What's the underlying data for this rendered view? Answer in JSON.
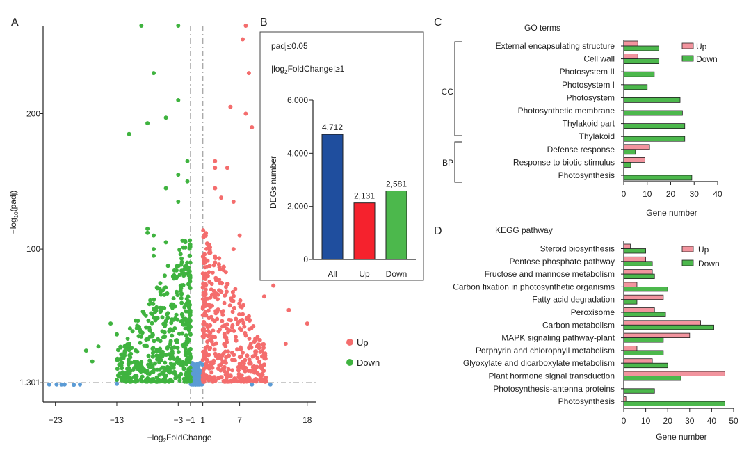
{
  "colors": {
    "up": "#f46d6d",
    "down": "#3fb33f",
    "ns": "#5b9bd5",
    "all": "#1f4e9e",
    "bar_up": "#f5222d",
    "bar_down": "#4cb84c",
    "h_up": "#f2949e",
    "h_down": "#4cb84c"
  },
  "chart_data": [
    {
      "panel": "A",
      "type": "scatter",
      "xlabel": "−log₂FoldChange",
      "ylabel": "−log₁₀(padj)",
      "xlabel_main": "−log",
      "xlabel_sub": "2",
      "xlabel_tail": "FoldChange",
      "ylabel_main": "−log",
      "ylabel_sub": "10",
      "ylabel_tail": "(padj)",
      "xticks": [
        "−23",
        "−13",
        "−3",
        "−1",
        "1",
        "7",
        "18"
      ],
      "xtick_values": [
        -23,
        -13,
        -3,
        -1,
        1,
        7,
        18
      ],
      "yticks": [
        "1.301",
        "100",
        "200"
      ],
      "ytick_values": [
        1.301,
        100,
        200
      ],
      "xlim": [
        -25,
        19.5
      ],
      "ylim": [
        -13,
        265
      ],
      "threshold_y": 1.301,
      "threshold_x": [
        -1,
        1
      ],
      "legend": [
        {
          "label": "Up",
          "series": "up"
        },
        {
          "label": "Down",
          "series": "down"
        }
      ],
      "highlight_points": {
        "down": [
          [
            -9,
            265
          ],
          [
            -3,
            265
          ],
          [
            -7,
            230
          ],
          [
            -3,
            210
          ],
          [
            -5,
            197
          ],
          [
            -8,
            193
          ],
          [
            -11,
            185
          ],
          [
            -1.5,
            165
          ],
          [
            -3,
            155
          ],
          [
            -1.5,
            150
          ],
          [
            -5,
            145
          ],
          [
            -3,
            135
          ],
          [
            -8,
            115
          ],
          [
            -8,
            112
          ],
          [
            -7,
            110
          ],
          [
            -5,
            105
          ],
          [
            -7,
            100
          ],
          [
            -7,
            95
          ],
          [
            -13,
            37
          ],
          [
            -14,
            45
          ],
          [
            -18,
            25
          ],
          [
            -16,
            28
          ],
          [
            -17,
            17
          ]
        ],
        "up": [
          [
            8,
            265
          ],
          [
            7.5,
            255
          ],
          [
            8.5,
            230
          ],
          [
            8,
            200
          ],
          [
            5.5,
            205
          ],
          [
            9,
            190
          ],
          [
            3,
            165
          ],
          [
            3,
            160
          ],
          [
            5,
            160
          ],
          [
            3,
            145
          ],
          [
            4,
            138
          ],
          [
            6,
            135
          ],
          [
            7,
            110
          ],
          [
            6,
            100
          ],
          [
            2,
            83
          ],
          [
            4,
            75
          ],
          [
            2.8,
            88
          ],
          [
            12.5,
            73
          ],
          [
            11,
            65
          ],
          [
            15,
            55
          ],
          [
            18,
            45
          ],
          [
            14.5,
            30
          ]
        ],
        "ns": [
          [
            -22,
            0
          ],
          [
            -20,
            -0.3
          ],
          [
            -22.8,
            0
          ],
          [
            -21.5,
            0
          ],
          [
            -19,
            0
          ],
          [
            -24,
            0
          ],
          [
            -13,
            0.5
          ],
          [
            9,
            0
          ],
          [
            12,
            0
          ],
          [
            -0.3,
            5
          ],
          [
            0.3,
            4
          ],
          [
            -0.6,
            8
          ],
          [
            0.5,
            10
          ],
          [
            -0.1,
            12
          ],
          [
            0.2,
            7
          ]
        ]
      },
      "cloud": {
        "down": {
          "x_range": [
            -17,
            -1
          ],
          "y_max": 115,
          "count": 520
        },
        "up": {
          "x_range": [
            1,
            15
          ],
          "y_max": 115,
          "count": 460
        },
        "ns": {
          "x_range": [
            -1,
            1
          ],
          "y_max": 16,
          "count": 150
        }
      }
    },
    {
      "panel": "B",
      "type": "bar",
      "annotation_1": "padj≤0.05",
      "annotation_2_main": "|log",
      "annotation_2_sub": "2",
      "annotation_2_tail": "FoldChange|≥1",
      "categories": [
        "All",
        "Up",
        "Down"
      ],
      "values": [
        4712,
        2131,
        2581
      ],
      "value_labels": [
        "4,712",
        "2,131",
        "2,581"
      ],
      "yticks": [
        "0",
        "2,000",
        "4,000",
        "6,000"
      ],
      "ytick_values": [
        0,
        2000,
        4000,
        6000
      ],
      "ylabel": "DEGs number",
      "ylim": [
        0,
        6000
      ]
    },
    {
      "panel": "C",
      "type": "bar",
      "orientation": "horizontal",
      "title": "GO terms",
      "groups": [
        {
          "label": "CC",
          "from": 0,
          "to": 7
        },
        {
          "label": "BP",
          "from": 8,
          "to": 10
        }
      ],
      "categories": [
        "External encapsulating structure",
        "Cell wall",
        "Photosystem II",
        "Photosystem I",
        "Photosystem",
        "Photosynthetic membrane",
        "Thylakoid part",
        "Thylakoid",
        "Defense response",
        "Response to biotic stimulus",
        "Photosynthesis"
      ],
      "series": [
        {
          "name": "Up",
          "values": [
            6,
            6,
            0,
            0,
            0,
            0,
            0,
            0,
            11,
            9,
            0
          ]
        },
        {
          "name": "Down",
          "values": [
            15,
            15,
            13,
            10,
            24,
            25,
            26,
            26,
            5,
            3,
            29
          ]
        }
      ],
      "xticks": [
        "0",
        "10",
        "20",
        "30",
        "40"
      ],
      "xtick_values": [
        0,
        10,
        20,
        30,
        40
      ],
      "xlabel": "Gene number",
      "xlim": [
        0,
        40
      ],
      "legend": [
        "Up",
        "Down"
      ]
    },
    {
      "panel": "D",
      "type": "bar",
      "orientation": "horizontal",
      "title": "KEGG pathway",
      "categories": [
        "Steroid biosynthesis",
        "Pentose phosphate pathway",
        "Fructose and mannose metabolism",
        "Carbon fixation in photosynthetic organisms",
        "Fatty acid degradation",
        "Peroxisome",
        "Carbon metabolism",
        "MAPK signaling pathway-plant",
        "Porphyrin and chlorophyll metabolism",
        "Glyoxylate and dicarboxylate metabolism",
        "Plant hormone signal transduction",
        "Photosynthesis-antenna proteins",
        "Photosynthesis"
      ],
      "series": [
        {
          "name": "Up",
          "values": [
            3,
            10,
            13,
            6,
            18,
            14,
            35,
            30,
            6,
            13,
            46,
            0,
            1
          ]
        },
        {
          "name": "Down",
          "values": [
            10,
            13,
            14,
            20,
            6,
            19,
            41,
            18,
            18,
            20,
            26,
            14,
            46
          ]
        }
      ],
      "xticks": [
        "0",
        "10",
        "20",
        "30",
        "40",
        "50"
      ],
      "xtick_values": [
        0,
        10,
        20,
        30,
        40,
        50
      ],
      "xlabel": "Gene number",
      "xlim": [
        0,
        50
      ],
      "legend": [
        "Up",
        "Down"
      ]
    }
  ]
}
